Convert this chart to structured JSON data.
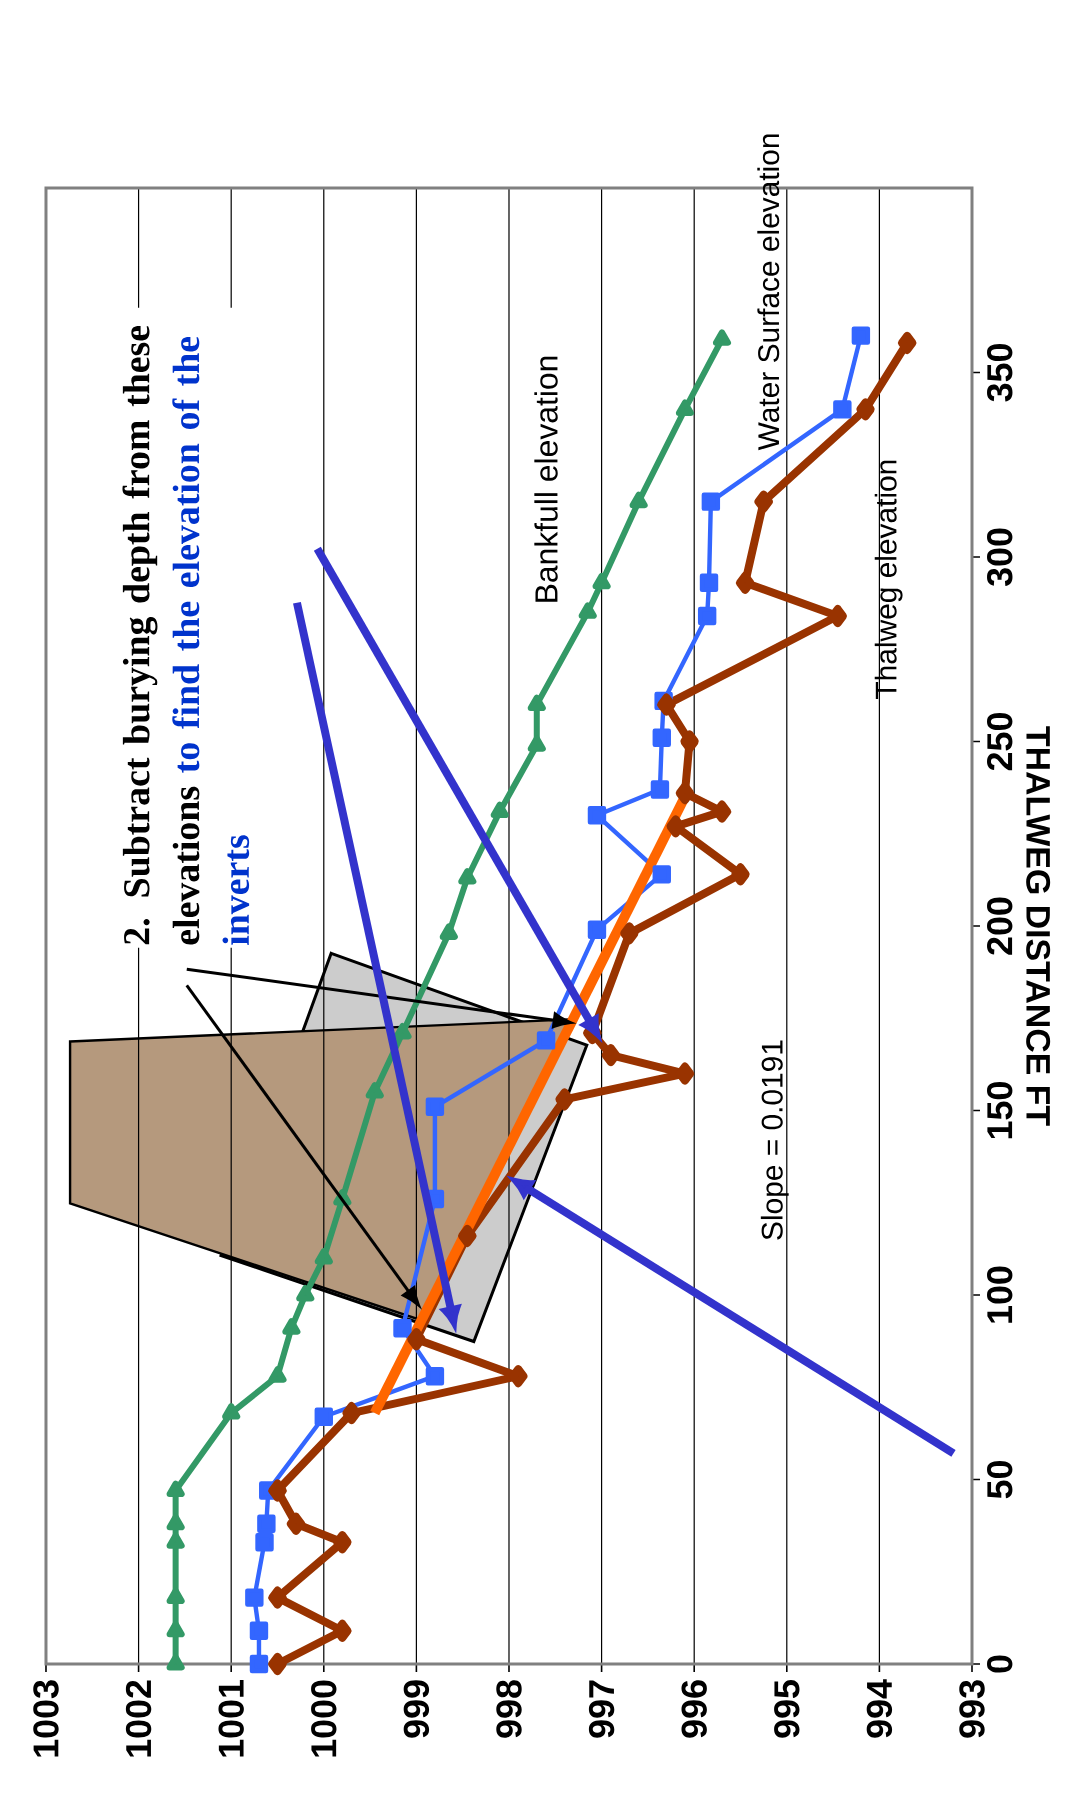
{
  "chart_data": {
    "type": "line",
    "ylabel": "THALWEG DISTANCE FT",
    "xlim": [
      1003,
      993
    ],
    "xticks": [
      1003,
      1002,
      1001,
      1000,
      999,
      998,
      997,
      996,
      995,
      994,
      993
    ],
    "ylim": [
      0,
      400
    ],
    "yticks": [
      0,
      50,
      100,
      150,
      200,
      250,
      300,
      350
    ],
    "grid": "x",
    "series": [
      {
        "name": "Bankfull elevation",
        "color": "#339966",
        "marker": "triangle",
        "values": [
          0,
          9,
          18,
          33,
          38,
          47,
          68,
          78,
          91,
          100,
          110,
          126,
          155,
          171,
          198,
          213,
          231,
          249,
          260,
          285,
          293,
          315,
          340,
          359
        ],
        "x": [
          1001.6,
          1001.6,
          1001.6,
          1001.6,
          1001.6,
          1001.6,
          1001.0,
          1000.5,
          1000.35,
          1000.2,
          1000.0,
          999.8,
          999.45,
          999.15,
          998.65,
          998.45,
          998.1,
          997.7,
          997.7,
          997.15,
          997.0,
          996.6,
          996.1,
          995.7
        ]
      },
      {
        "name": "Water Surface elevation",
        "color": "#3366ff",
        "marker": "square",
        "values": [
          0,
          9,
          18,
          33,
          38,
          47,
          67,
          78,
          91,
          126,
          151,
          169,
          199,
          214,
          230,
          237,
          251,
          261,
          284,
          293,
          315,
          340,
          360
        ],
        "x": [
          1000.7,
          1000.7,
          1000.75,
          1000.64,
          1000.62,
          1000.6,
          1000.0,
          998.8,
          999.15,
          998.8,
          998.8,
          997.6,
          997.05,
          996.35,
          997.05,
          996.37,
          996.35,
          996.33,
          995.86,
          995.84,
          995.82,
          994.4,
          994.2
        ]
      },
      {
        "name": "Thalweg elevation",
        "color": "#993300",
        "marker": "diamond",
        "values": [
          0,
          9,
          18,
          33,
          38,
          47,
          68,
          78,
          88,
          116,
          153,
          160,
          165,
          171,
          198,
          214,
          227,
          231,
          236,
          250,
          260,
          284,
          293,
          315,
          340,
          358
        ],
        "x": [
          1000.5,
          999.8,
          1000.5,
          999.8,
          1000.3,
          1000.5,
          999.7,
          997.9,
          999.0,
          998.45,
          997.4,
          996.1,
          996.9,
          997.1,
          996.7,
          995.5,
          996.2,
          995.7,
          996.1,
          996.05,
          996.3,
          994.45,
          995.45,
          995.25,
          994.15,
          993.7
        ]
      },
      {
        "color": "#ff6600",
        "marker": "none",
        "values": [
          68,
          235
        ],
        "x": [
          999.45,
          996.1
        ]
      }
    ],
    "annotations": [
      "2.  Subtract burying depth from these elevations",
      "to find the elevation of the inverts",
      "Slope = 0.0191"
    ]
  }
}
